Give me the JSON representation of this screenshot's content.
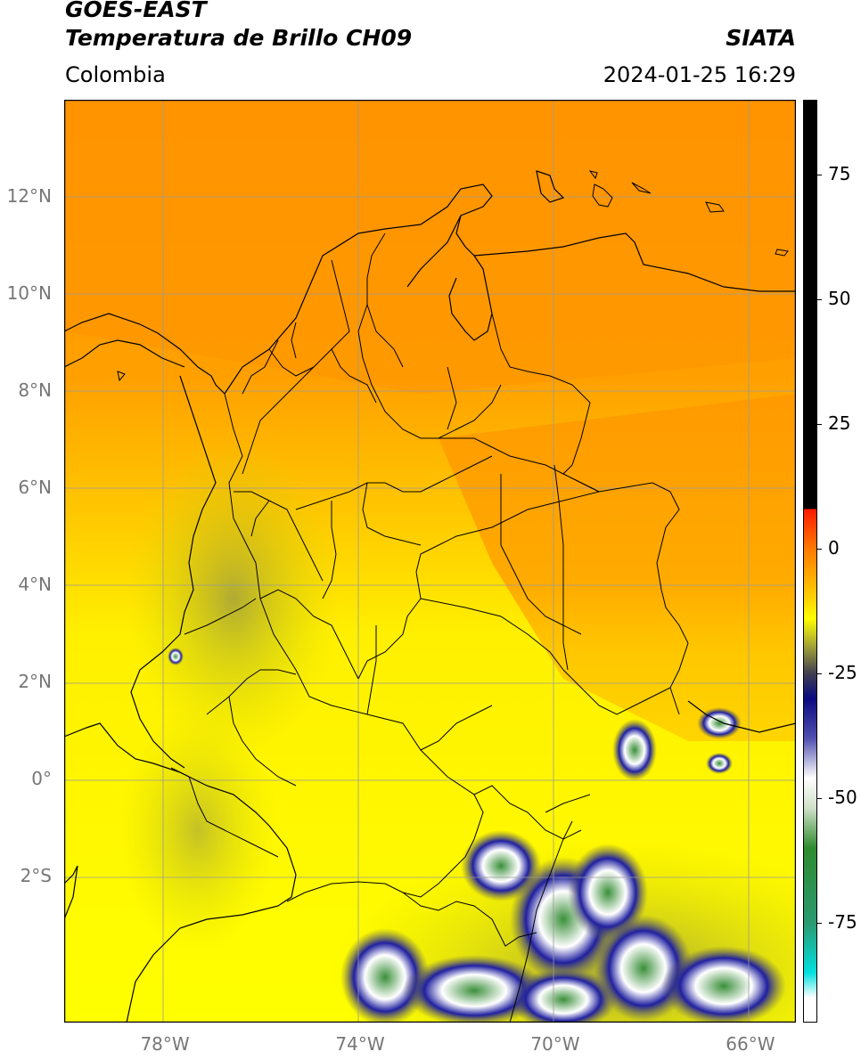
{
  "header": {
    "satellite": "GOES-EAST",
    "product": "Temperatura de Brillo CH09",
    "region": "Colombia",
    "agency": "SIATA",
    "timestamp": "2024-01-25 16:29"
  },
  "map": {
    "lon_range": [
      -80,
      -65
    ],
    "lat_range": [
      -5,
      14
    ],
    "lat_ticks": [
      {
        "value": 12,
        "label": "12°N"
      },
      {
        "value": 10,
        "label": "10°N"
      },
      {
        "value": 8,
        "label": "8°N"
      },
      {
        "value": 6,
        "label": "6°N"
      },
      {
        "value": 4,
        "label": "4°N"
      },
      {
        "value": 2,
        "label": "2°N"
      },
      {
        "value": 0,
        "label": "0°"
      },
      {
        "value": -2,
        "label": "2°S"
      }
    ],
    "lon_ticks": [
      {
        "value": -78,
        "label": "78°W"
      },
      {
        "value": -74,
        "label": "74°W"
      },
      {
        "value": -70,
        "label": "70°W"
      },
      {
        "value": -66,
        "label": "66°W"
      }
    ],
    "grid": true
  },
  "colorbar": {
    "range": [
      -95,
      90
    ],
    "ticks": [
      {
        "value": 75,
        "label": "75"
      },
      {
        "value": 50,
        "label": "50"
      },
      {
        "value": 25,
        "label": "25"
      },
      {
        "value": 0,
        "label": "0"
      },
      {
        "value": -25,
        "label": "-25"
      },
      {
        "value": -50,
        "label": "-50"
      },
      {
        "value": -75,
        "label": "-75"
      }
    ],
    "stops": [
      {
        "value": 90,
        "color": "#000000"
      },
      {
        "value": 8,
        "color": "#000000"
      },
      {
        "value": 7.9,
        "color": "#ff1a00"
      },
      {
        "value": 0,
        "color": "#ff7a00"
      },
      {
        "value": -10,
        "color": "#ffd200"
      },
      {
        "value": -14,
        "color": "#ffff00"
      },
      {
        "value": -20,
        "color": "#9a9a3a"
      },
      {
        "value": -25,
        "color": "#404050"
      },
      {
        "value": -30,
        "color": "#0a0a80"
      },
      {
        "value": -38,
        "color": "#5050b0"
      },
      {
        "value": -46,
        "color": "#ffffff"
      },
      {
        "value": -52,
        "color": "#cfe0c8"
      },
      {
        "value": -60,
        "color": "#2e8b2e"
      },
      {
        "value": -75,
        "color": "#2a9a70"
      },
      {
        "value": -85,
        "color": "#00e0e0"
      },
      {
        "value": -90,
        "color": "#ffffff"
      },
      {
        "value": -95,
        "color": "#ffffff"
      }
    ]
  },
  "colors": {
    "orange": "#ff9900",
    "yellow": "#ffff00",
    "olive": "#a8a83c",
    "navy": "#101080",
    "green": "#3a8f3a"
  }
}
